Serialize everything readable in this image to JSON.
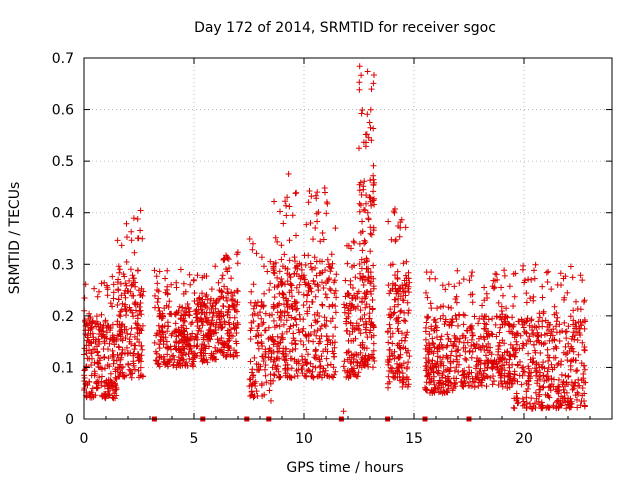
{
  "chart_data": {
    "type": "scatter",
    "title": "Day 172 of 2014, SRMTID for receiver sgoc",
    "xlabel": "GPS time / hours",
    "ylabel": "SRMTID / TECUs",
    "xlim": [
      0,
      24
    ],
    "ylim": [
      0,
      0.7
    ],
    "x_ticks": [
      0,
      5,
      10,
      15,
      20
    ],
    "x_tick_labels": [
      "0",
      "5",
      "10",
      "15",
      "20"
    ],
    "y_ticks": [
      0,
      0.1,
      0.2,
      0.3,
      0.4,
      0.5,
      0.6,
      0.7
    ],
    "y_tick_labels": [
      "0",
      "0.1",
      "0.2",
      "0.3",
      "0.4",
      "0.5",
      "0.6",
      "0.7"
    ],
    "grid": true,
    "marker": "plus",
    "series_color": "#dd0000",
    "note": "Dense scatter of several thousand points; approximated by per-segment sampled envelopes below.",
    "segments": [
      {
        "x": [
          0.0,
          1.5
        ],
        "y_min": 0.04,
        "y_max": 0.28,
        "n": 230
      },
      {
        "x": [
          1.5,
          2.7
        ],
        "y_min": 0.08,
        "y_max": 0.42,
        "n": 190
      },
      {
        "x": [
          3.2,
          5.0
        ],
        "y_min": 0.1,
        "y_max": 0.29,
        "n": 230
      },
      {
        "x": [
          5.0,
          6.0
        ],
        "y_min": 0.11,
        "y_max": 0.31,
        "n": 150
      },
      {
        "x": [
          6.0,
          7.0
        ],
        "y_min": 0.12,
        "y_max": 0.33,
        "n": 140
      },
      {
        "x": [
          7.5,
          8.6
        ],
        "y_min": 0.04,
        "y_max": 0.35,
        "n": 120
      },
      {
        "x": [
          8.6,
          9.5
        ],
        "y_min": 0.08,
        "y_max": 0.43,
        "n": 160
      },
      {
        "x": [
          9.5,
          11.5
        ],
        "y_min": 0.08,
        "y_max": 0.45,
        "n": 260
      },
      {
        "x": [
          11.8,
          12.5
        ],
        "y_min": 0.08,
        "y_max": 0.35,
        "n": 100
      },
      {
        "x": [
          12.5,
          13.2
        ],
        "y_min": 0.1,
        "y_max": 0.69,
        "n": 180
      },
      {
        "x": [
          13.8,
          14.8
        ],
        "y_min": 0.06,
        "y_max": 0.41,
        "n": 170
      },
      {
        "x": [
          15.5,
          16.8
        ],
        "y_min": 0.05,
        "y_max": 0.29,
        "n": 190
      },
      {
        "x": [
          16.8,
          19.5
        ],
        "y_min": 0.06,
        "y_max": 0.29,
        "n": 320
      },
      {
        "x": [
          19.5,
          22.8
        ],
        "y_min": 0.02,
        "y_max": 0.3,
        "n": 420
      }
    ],
    "outliers": [
      {
        "x": 9.3,
        "y": 0.475
      },
      {
        "x": 8.5,
        "y": 0.035
      },
      {
        "x": 11.8,
        "y": 0.015
      },
      {
        "x": 10.6,
        "y": 0.44
      },
      {
        "x": 12.5,
        "y": 0.525
      }
    ],
    "zero_markers_x": [
      3.2,
      5.4,
      7.4,
      8.4,
      11.7,
      13.8,
      15.5,
      17.5
    ]
  }
}
